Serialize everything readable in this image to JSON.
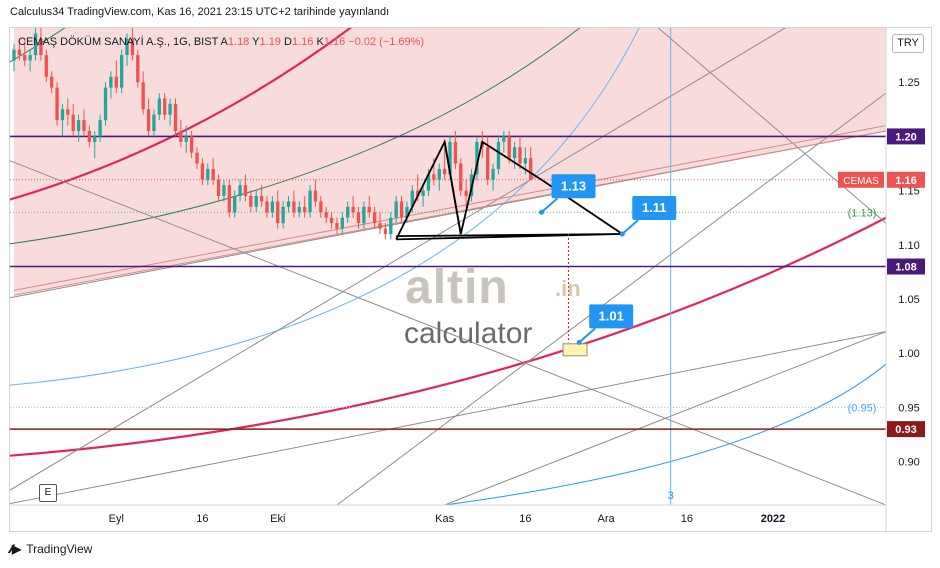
{
  "header": {
    "publish_line": "Calculus34 TradingView.com, Kas 16, 2021 23:15 UTC+2 tarihinde yayınlandı"
  },
  "legend": {
    "title": "CEMAŞ DÖKÜM SANAYİ A.Ş., 1G, BIST",
    "open_label": "A",
    "open": "1.18",
    "high_label": "Y",
    "high": "1.19",
    "low_label": "D",
    "low": "1.16",
    "close_label": "K",
    "close": "1.16",
    "change": "−0.02 (−1.69%)"
  },
  "currency_button": "TRY",
  "e_button": "E",
  "footer": {
    "brand": "TradingView",
    "logo": "tradingview-logo-icon"
  },
  "watermark": {
    "word": "altin",
    "suffix": ".in",
    "sub": "calculator"
  },
  "colors": {
    "up": "#26a69a",
    "down": "#ef5350",
    "purple": "#4a1a7a",
    "darkred": "#8b1a1a",
    "pink_fill": "#f7d6d6",
    "crimson": "#e0245e",
    "blue": "#2196f3"
  },
  "chart_data": {
    "type": "candlestick",
    "symbol": "CEMAS",
    "ylim": [
      0.86,
      1.3
    ],
    "y_ticks": [
      0.9,
      0.95,
      1.0,
      1.05,
      1.1,
      1.15,
      1.25
    ],
    "x_ticks": [
      {
        "label": "Eyl",
        "day": 19
      },
      {
        "label": "16",
        "day": 35
      },
      {
        "label": "Eki",
        "day": 49
      },
      {
        "label": "Kas",
        "day": 80
      },
      {
        "label": "16",
        "day": 95
      },
      {
        "label": "Ara",
        "day": 110
      },
      {
        "label": "16",
        "day": 125
      },
      {
        "label": "2022",
        "day": 141
      }
    ],
    "xlim": [
      0,
      162
    ],
    "candles": [
      [
        0,
        1.27,
        1.285,
        1.26,
        1.28
      ],
      [
        1,
        1.28,
        1.29,
        1.27,
        1.275
      ],
      [
        2,
        1.275,
        1.29,
        1.265,
        1.27
      ],
      [
        3,
        1.27,
        1.28,
        1.26,
        1.275
      ],
      [
        4,
        1.275,
        1.3,
        1.27,
        1.295
      ],
      [
        5,
        1.29,
        1.3,
        1.27,
        1.275
      ],
      [
        6,
        1.275,
        1.28,
        1.25,
        1.255
      ],
      [
        7,
        1.255,
        1.26,
        1.24,
        1.245
      ],
      [
        8,
        1.245,
        1.25,
        1.21,
        1.215
      ],
      [
        9,
        1.215,
        1.23,
        1.2,
        1.225
      ],
      [
        10,
        1.225,
        1.235,
        1.21,
        1.22
      ],
      [
        11,
        1.22,
        1.23,
        1.2,
        1.205
      ],
      [
        12,
        1.205,
        1.22,
        1.195,
        1.215
      ],
      [
        13,
        1.215,
        1.225,
        1.2,
        1.205
      ],
      [
        14,
        1.205,
        1.21,
        1.19,
        1.195
      ],
      [
        15,
        1.195,
        1.205,
        1.18,
        1.2
      ],
      [
        16,
        1.2,
        1.22,
        1.195,
        1.215
      ],
      [
        17,
        1.215,
        1.25,
        1.21,
        1.245
      ],
      [
        18,
        1.245,
        1.26,
        1.235,
        1.255
      ],
      [
        19,
        1.255,
        1.27,
        1.24,
        1.245
      ],
      [
        20,
        1.245,
        1.28,
        1.24,
        1.275
      ],
      [
        21,
        1.275,
        1.295,
        1.265,
        1.29
      ],
      [
        22,
        1.29,
        1.305,
        1.27,
        1.275
      ],
      [
        23,
        1.275,
        1.28,
        1.245,
        1.25
      ],
      [
        24,
        1.25,
        1.26,
        1.22,
        1.225
      ],
      [
        25,
        1.225,
        1.235,
        1.2,
        1.205
      ],
      [
        26,
        1.205,
        1.225,
        1.2,
        1.22
      ],
      [
        27,
        1.22,
        1.24,
        1.215,
        1.235
      ],
      [
        28,
        1.235,
        1.24,
        1.215,
        1.22
      ],
      [
        29,
        1.22,
        1.235,
        1.21,
        1.23
      ],
      [
        30,
        1.23,
        1.235,
        1.2,
        1.205
      ],
      [
        31,
        1.205,
        1.215,
        1.19,
        1.195
      ],
      [
        32,
        1.195,
        1.21,
        1.185,
        1.2
      ],
      [
        33,
        1.2,
        1.205,
        1.18,
        1.185
      ],
      [
        34,
        1.185,
        1.19,
        1.17,
        1.175
      ],
      [
        35,
        1.175,
        1.18,
        1.155,
        1.16
      ],
      [
        36,
        1.16,
        1.175,
        1.155,
        1.17
      ],
      [
        37,
        1.17,
        1.18,
        1.155,
        1.16
      ],
      [
        38,
        1.16,
        1.165,
        1.14,
        1.145
      ],
      [
        39,
        1.145,
        1.16,
        1.14,
        1.155
      ],
      [
        40,
        1.155,
        1.16,
        1.125,
        1.13
      ],
      [
        41,
        1.13,
        1.15,
        1.125,
        1.145
      ],
      [
        42,
        1.145,
        1.16,
        1.14,
        1.155
      ],
      [
        43,
        1.155,
        1.165,
        1.14,
        1.145
      ],
      [
        44,
        1.145,
        1.15,
        1.13,
        1.135
      ],
      [
        45,
        1.135,
        1.15,
        1.13,
        1.145
      ],
      [
        46,
        1.145,
        1.155,
        1.135,
        1.14
      ],
      [
        47,
        1.14,
        1.145,
        1.125,
        1.13
      ],
      [
        48,
        1.13,
        1.145,
        1.125,
        1.14
      ],
      [
        49,
        1.14,
        1.15,
        1.115,
        1.12
      ],
      [
        50,
        1.12,
        1.14,
        1.115,
        1.135
      ],
      [
        51,
        1.135,
        1.145,
        1.13,
        1.14
      ],
      [
        52,
        1.14,
        1.15,
        1.125,
        1.13
      ],
      [
        53,
        1.13,
        1.14,
        1.125,
        1.135
      ],
      [
        54,
        1.135,
        1.145,
        1.125,
        1.13
      ],
      [
        55,
        1.13,
        1.155,
        1.125,
        1.15
      ],
      [
        56,
        1.15,
        1.16,
        1.135,
        1.14
      ],
      [
        57,
        1.14,
        1.145,
        1.125,
        1.13
      ],
      [
        58,
        1.13,
        1.135,
        1.12,
        1.125
      ],
      [
        59,
        1.125,
        1.13,
        1.115,
        1.12
      ],
      [
        60,
        1.12,
        1.125,
        1.11,
        1.115
      ],
      [
        61,
        1.115,
        1.13,
        1.11,
        1.125
      ],
      [
        62,
        1.125,
        1.14,
        1.12,
        1.135
      ],
      [
        63,
        1.135,
        1.145,
        1.125,
        1.13
      ],
      [
        64,
        1.13,
        1.135,
        1.115,
        1.12
      ],
      [
        65,
        1.12,
        1.14,
        1.115,
        1.135
      ],
      [
        66,
        1.135,
        1.145,
        1.125,
        1.13
      ],
      [
        67,
        1.13,
        1.135,
        1.115,
        1.12
      ],
      [
        68,
        1.12,
        1.13,
        1.11,
        1.115
      ],
      [
        69,
        1.115,
        1.12,
        1.105,
        1.11
      ],
      [
        70,
        1.11,
        1.13,
        1.105,
        1.125
      ],
      [
        71,
        1.125,
        1.145,
        1.12,
        1.14
      ],
      [
        72,
        1.14,
        1.145,
        1.12,
        1.125
      ],
      [
        73,
        1.125,
        1.14,
        1.12,
        1.135
      ],
      [
        74,
        1.135,
        1.155,
        1.13,
        1.15
      ],
      [
        75,
        1.15,
        1.165,
        1.14,
        1.145
      ],
      [
        76,
        1.145,
        1.155,
        1.135,
        1.15
      ],
      [
        77,
        1.15,
        1.17,
        1.145,
        1.165
      ],
      [
        78,
        1.165,
        1.18,
        1.155,
        1.16
      ],
      [
        79,
        1.16,
        1.175,
        1.15,
        1.17
      ],
      [
        80,
        1.17,
        1.19,
        1.16,
        1.165
      ],
      [
        81,
        1.165,
        1.2,
        1.16,
        1.195
      ],
      [
        82,
        1.195,
        1.205,
        1.17,
        1.175
      ],
      [
        83,
        1.175,
        1.18,
        1.145,
        1.15
      ],
      [
        84,
        1.15,
        1.16,
        1.135,
        1.145
      ],
      [
        85,
        1.145,
        1.17,
        1.14,
        1.165
      ],
      [
        86,
        1.165,
        1.2,
        1.16,
        1.195
      ],
      [
        87,
        1.195,
        1.205,
        1.18,
        1.19
      ],
      [
        88,
        1.19,
        1.2,
        1.155,
        1.16
      ],
      [
        89,
        1.16,
        1.175,
        1.15,
        1.17
      ],
      [
        90,
        1.17,
        1.2,
        1.165,
        1.195
      ],
      [
        91,
        1.195,
        1.205,
        1.185,
        1.2
      ],
      [
        92,
        1.2,
        1.205,
        1.175,
        1.18
      ],
      [
        93,
        1.18,
        1.195,
        1.17,
        1.19
      ],
      [
        94,
        1.19,
        1.2,
        1.17,
        1.175
      ],
      [
        95,
        1.175,
        1.19,
        1.165,
        1.18
      ],
      [
        96,
        1.18,
        1.19,
        1.16,
        1.16
      ]
    ],
    "horizontal_levels": [
      {
        "value": 1.2,
        "label": "1.20",
        "color": "#4a1a7a"
      },
      {
        "value": 1.08,
        "label": "1.08",
        "color": "#4a1a7a"
      },
      {
        "value": 0.93,
        "label": "0.93",
        "color": "#8b1a1a"
      }
    ],
    "last_price": {
      "value": 1.16,
      "label": "1.16",
      "symbol_label": "CEMAS"
    },
    "dotted_levels": [
      {
        "value": 1.13,
        "label": "(1.13)"
      },
      {
        "value": 0.95,
        "label": "(0.95)"
      }
    ],
    "callouts": [
      {
        "label": "1.13",
        "day": 98,
        "value": 1.13
      },
      {
        "label": "1.11",
        "day": 113,
        "value": 1.11
      },
      {
        "label": "1.01",
        "day": 105,
        "value": 1.01
      }
    ],
    "pattern_points": [
      [
        71,
        1.105
      ],
      [
        80,
        1.195
      ],
      [
        83,
        1.11
      ],
      [
        87,
        1.195
      ],
      [
        98,
        1.16
      ],
      [
        113,
        1.11
      ],
      [
        71,
        1.105
      ]
    ],
    "cycle_label": "3"
  }
}
